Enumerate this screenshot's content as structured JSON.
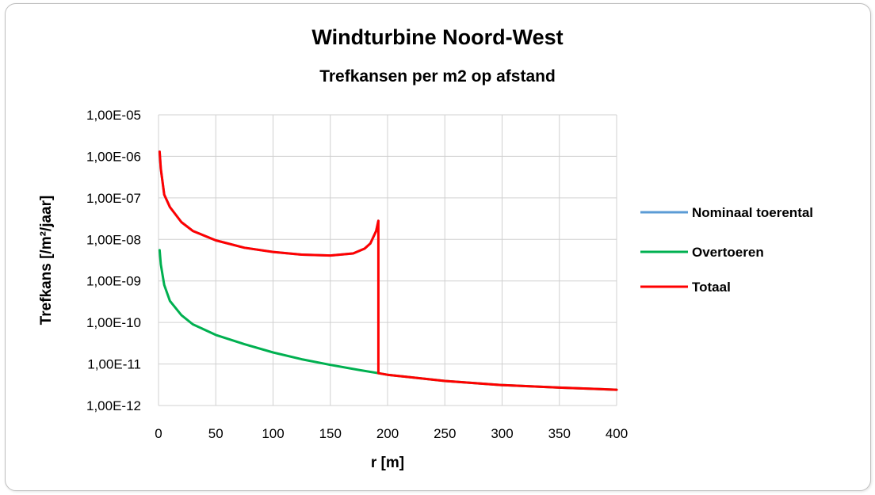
{
  "chart_data": {
    "type": "line",
    "title": "Windturbine Noord-West",
    "subtitle": "Trefkansen per m2 op afstand",
    "xlabel": "r [m]",
    "ylabel": "Trefkans [/m²/jaar]",
    "xlim": [
      0,
      400
    ],
    "ylim": [
      1e-12,
      1e-05
    ],
    "yscale": "log",
    "grid": true,
    "legend_position": "right",
    "x_ticks": [
      0,
      50,
      100,
      150,
      200,
      250,
      300,
      350,
      400
    ],
    "x_tick_labels": [
      "0",
      "50",
      "100",
      "150",
      "200",
      "250",
      "300",
      "350",
      "400"
    ],
    "y_ticks": [
      1e-12,
      1e-11,
      1e-10,
      1e-09,
      1e-08,
      1e-07,
      1e-06,
      1e-05
    ],
    "y_tick_labels": [
      "1,00E-12",
      "1,00E-11",
      "1,00E-10",
      "1,00E-09",
      "1,00E-08",
      "1,00E-07",
      "1,00E-06",
      "1,00E-05"
    ],
    "series": [
      {
        "name": "Nominaal toerental",
        "color": "#5b9bd5",
        "x": [
          1,
          2,
          5,
          10,
          20,
          30,
          50,
          75,
          100,
          125,
          150,
          170,
          180,
          185,
          190,
          192
        ],
        "y": [
          1.3e-06,
          5e-07,
          1.2e-07,
          6e-08,
          2.6e-08,
          1.6e-08,
          9.5e-09,
          6.3e-09,
          5e-09,
          4.3e-09,
          4.1e-09,
          4.6e-09,
          6e-09,
          8e-09,
          1.6e-08,
          2.8e-08
        ]
      },
      {
        "name": "Overtoeren",
        "color": "#00b050",
        "x": [
          1,
          2,
          5,
          10,
          20,
          30,
          50,
          75,
          100,
          125,
          150,
          175,
          192,
          200,
          250,
          300,
          350,
          400
        ],
        "y": [
          5.5e-09,
          2.5e-09,
          8e-10,
          3.3e-10,
          1.5e-10,
          9e-11,
          5e-11,
          3e-11,
          1.9e-11,
          1.3e-11,
          9.5e-12,
          7.2e-12,
          6e-12,
          5.5e-12,
          3.9e-12,
          3.1e-12,
          2.7e-12,
          2.4e-12
        ]
      },
      {
        "name": "Totaal",
        "color": "#ff0000",
        "x": [
          1,
          2,
          5,
          10,
          20,
          30,
          50,
          75,
          100,
          125,
          150,
          170,
          180,
          185,
          190,
          192,
          192,
          200,
          250,
          300,
          350,
          400
        ],
        "y": [
          1.3e-06,
          5e-07,
          1.2e-07,
          6e-08,
          2.6e-08,
          1.6e-08,
          9.5e-09,
          6.3e-09,
          5e-09,
          4.3e-09,
          4.1e-09,
          4.6e-09,
          6e-09,
          8e-09,
          1.6e-08,
          2.8e-08,
          6e-12,
          5.5e-12,
          3.9e-12,
          3.1e-12,
          2.7e-12,
          2.4e-12
        ]
      }
    ]
  }
}
